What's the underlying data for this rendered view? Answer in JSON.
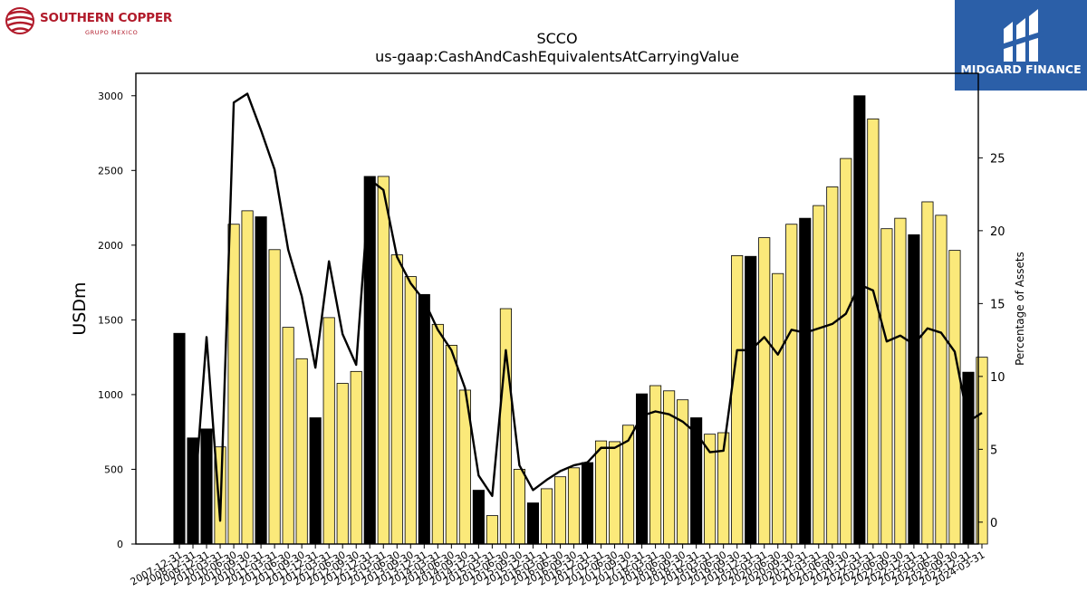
{
  "header": {
    "left_logo": {
      "name": "SOUTHERN COPPER",
      "subtitle": "GRUPO MEXICO",
      "color": "#b11a2a"
    },
    "right_logo": {
      "name": "MIDGARD FINANCE",
      "background": "#2b5fa8"
    }
  },
  "chart_data": {
    "type": "bar",
    "title": "SCCO",
    "subtitle": "us-gaap:CashAndCashEquivalentsAtCarryingValue",
    "ylabel": "USDm",
    "y2label": "Percentage of Assets",
    "ylim": [
      0,
      3150
    ],
    "y2lim": [
      -1.5,
      30.8
    ],
    "yticks": [
      0,
      500,
      1000,
      1500,
      2000,
      2500,
      3000
    ],
    "y2ticks": [
      0,
      5,
      10,
      15,
      20,
      25
    ],
    "bar_colors": {
      "annual": "#000000",
      "quarterly": "#fbe97a"
    },
    "line_color": "#000000",
    "categories": [
      "2007-12-31",
      "2008-12-31",
      "2009-12-31",
      "2010-03-31",
      "2010-06-30",
      "2010-09-30",
      "2010-12-31",
      "2011-03-31",
      "2011-06-30",
      "2011-09-30",
      "2011-12-31",
      "2012-03-31",
      "2012-06-30",
      "2012-09-30",
      "2012-12-31",
      "2013-03-31",
      "2013-06-30",
      "2013-09-30",
      "2013-12-31",
      "2014-03-31",
      "2014-06-30",
      "2014-09-30",
      "2014-12-31",
      "2015-03-31",
      "2015-06-30",
      "2015-09-30",
      "2015-12-31",
      "2016-03-31",
      "2016-06-30",
      "2016-09-30",
      "2016-12-31",
      "2017-03-31",
      "2017-06-30",
      "2017-09-30",
      "2017-12-31",
      "2018-03-31",
      "2018-06-30",
      "2018-09-30",
      "2018-12-31",
      "2019-03-31",
      "2019-06-30",
      "2019-09-30",
      "2019-12-31",
      "2020-03-31",
      "2020-06-30",
      "2020-09-30",
      "2020-12-31",
      "2021-03-31",
      "2021-06-30",
      "2021-09-30",
      "2021-12-31",
      "2022-03-31",
      "2022-06-30",
      "2022-09-30",
      "2022-12-31",
      "2023-03-31",
      "2023-06-30",
      "2023-09-30",
      "2023-12-31",
      "2024-03-31"
    ],
    "annual": [
      true,
      true,
      true,
      false,
      false,
      false,
      true,
      false,
      false,
      false,
      true,
      false,
      false,
      false,
      true,
      false,
      false,
      false,
      true,
      false,
      false,
      false,
      true,
      false,
      false,
      false,
      true,
      false,
      false,
      false,
      true,
      false,
      false,
      false,
      true,
      false,
      false,
      false,
      true,
      false,
      false,
      false,
      true,
      false,
      false,
      false,
      true,
      false,
      false,
      false,
      true,
      false,
      false,
      false,
      true,
      false,
      false,
      false,
      true,
      false
    ],
    "values": [
      1410,
      710,
      770,
      650,
      2140,
      2230,
      2190,
      1970,
      1450,
      1240,
      845,
      1515,
      1075,
      1155,
      2460,
      2460,
      1935,
      1790,
      1670,
      1470,
      1330,
      1030,
      360,
      190,
      1575,
      500,
      275,
      370,
      450,
      510,
      545,
      690,
      685,
      795,
      1005,
      1060,
      1025,
      965,
      845,
      735,
      745,
      1930,
      1925,
      2050,
      1810,
      2140,
      2180,
      2265,
      2390,
      2580,
      3000,
      2845,
      2110,
      2180,
      2070,
      2290,
      2200,
      1965,
      1150,
      1250
    ],
    "percent": [
      null,
      0.2,
      12.7,
      0.1,
      28.8,
      29.4,
      26.9,
      24.2,
      18.7,
      15.5,
      10.6,
      17.9,
      12.9,
      10.8,
      23.5,
      22.8,
      18.2,
      16.4,
      15.2,
      13.2,
      11.8,
      9.2,
      3.2,
      1.8,
      11.8,
      3.9,
      2.2,
      2.9,
      3.5,
      3.9,
      4.1,
      5.1,
      5.1,
      5.6,
      7.3,
      7.6,
      7.4,
      6.9,
      6.1,
      4.8,
      4.9,
      11.8,
      11.8,
      12.7,
      11.5,
      13.2,
      13.0,
      13.3,
      13.6,
      14.3,
      16.3,
      15.9,
      12.4,
      12.8,
      12.2,
      13.3,
      13.0,
      11.7,
      6.9,
      7.5
    ]
  }
}
